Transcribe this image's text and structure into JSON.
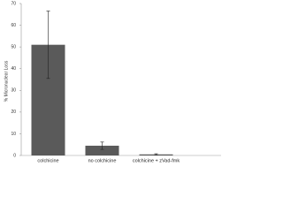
{
  "chart_data": {
    "type": "bar",
    "y_label": "% Micronuclear Loss",
    "categories": [
      "colchicine",
      "no colchicine",
      "colchicine + zVad-fmk"
    ],
    "values": [
      51,
      4.5,
      0.5
    ],
    "errors": [
      15.5,
      1.7,
      0.3
    ],
    "color": "#5a5a5a",
    "ylim": [
      0,
      70
    ],
    "yticks": [
      0,
      10,
      20,
      30,
      40,
      50,
      60,
      70
    ]
  }
}
